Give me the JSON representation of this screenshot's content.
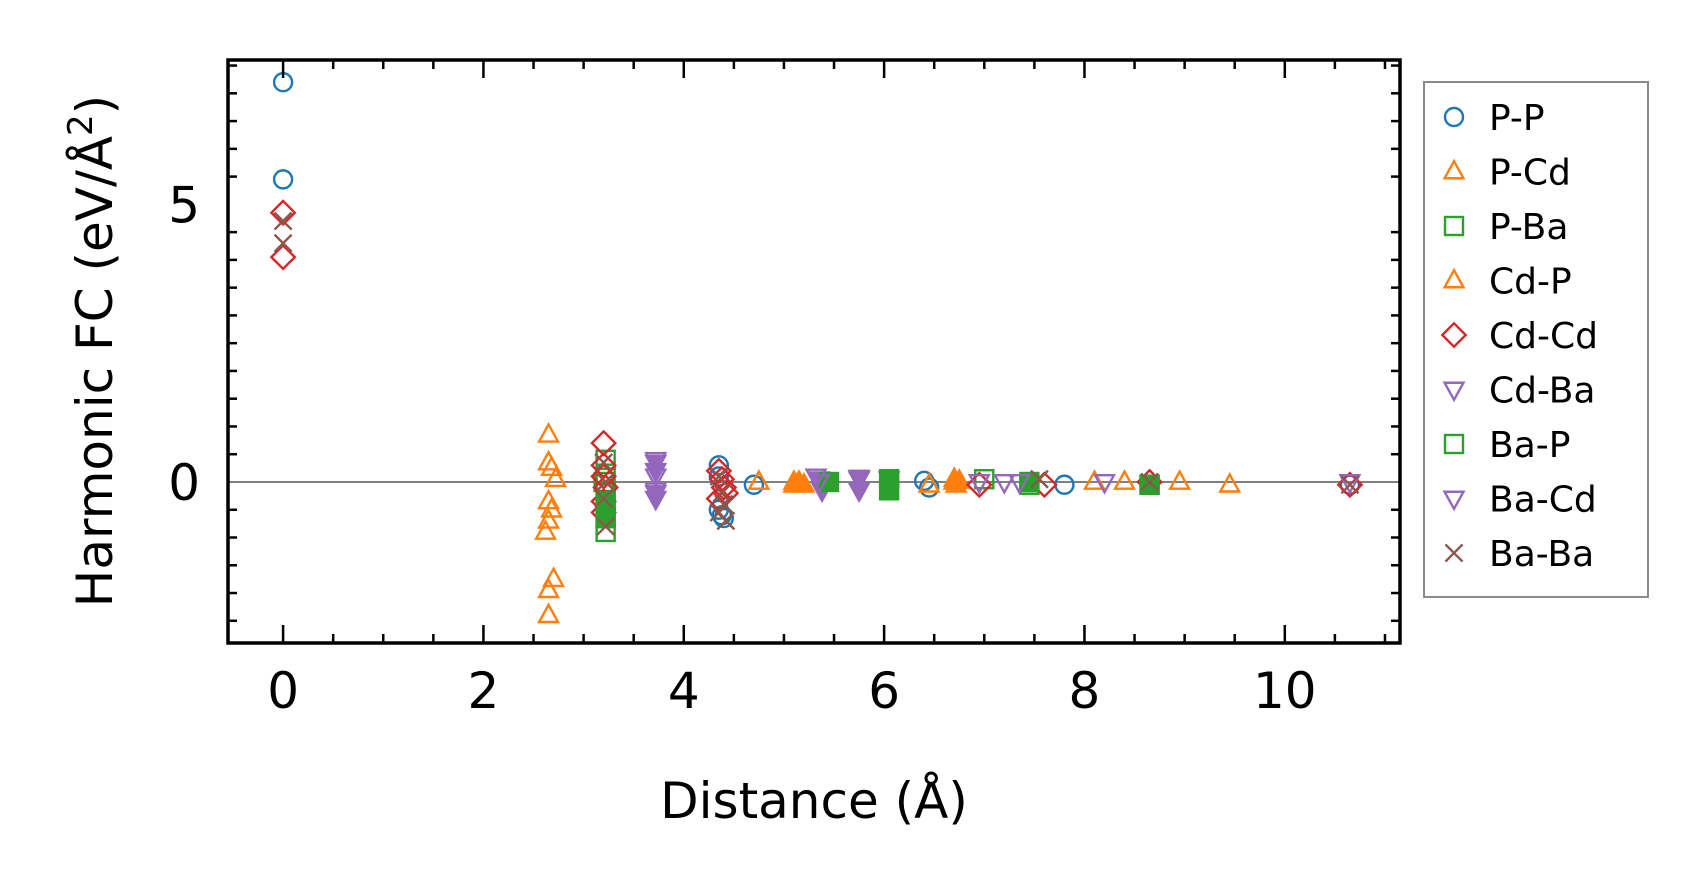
{
  "chart_data": {
    "type": "scatter",
    "title": "",
    "xlabel": "Distance (Å)",
    "ylabel_main": "Harmonic FC (eV/Å",
    "ylabel_sup": "2",
    "ylabel_close": ")",
    "xlim": [
      -0.55,
      11.15
    ],
    "ylim": [
      -2.9,
      7.6
    ],
    "xticks": [
      0,
      2,
      4,
      6,
      8,
      10
    ],
    "yticks": [
      0,
      5
    ],
    "xtick_labels": [
      "0",
      "2",
      "4",
      "6",
      "8",
      "10"
    ],
    "ytick_labels": [
      "0",
      "5"
    ],
    "legend_position": "outside-right",
    "reference_line_y": 0,
    "series": [
      {
        "name": "P-P",
        "marker": "circle",
        "filled": false,
        "color": "#1f77b4",
        "points": [
          [
            0,
            7.2
          ],
          [
            0,
            5.45
          ],
          [
            4.35,
            0.3
          ],
          [
            4.35,
            -0.5
          ],
          [
            4.38,
            -0.6
          ],
          [
            4.4,
            -0.65
          ],
          [
            4.35,
            0.1
          ],
          [
            4.7,
            -0.05
          ],
          [
            6.4,
            0.02
          ],
          [
            6.45,
            -0.1
          ],
          [
            7.8,
            -0.05
          ],
          [
            10.65,
            -0.05
          ]
        ]
      },
      {
        "name": "P-Cd",
        "marker": "triangle-up",
        "filled": false,
        "color": "#ff7f0e",
        "points": [
          [
            2.65,
            0.85
          ],
          [
            2.65,
            0.35
          ],
          [
            2.68,
            0.25
          ],
          [
            2.72,
            0.05
          ],
          [
            2.65,
            -0.35
          ],
          [
            2.68,
            -0.5
          ],
          [
            2.65,
            -0.7
          ],
          [
            2.62,
            -0.9
          ],
          [
            2.7,
            -1.75
          ],
          [
            2.65,
            -1.95
          ],
          [
            2.65,
            -2.4
          ],
          [
            4.75,
            0.0
          ],
          [
            5.1,
            0.0
          ],
          [
            6.45,
            -0.05
          ],
          [
            6.7,
            0.05
          ],
          [
            8.1,
            0.0
          ],
          [
            8.4,
            0.0
          ],
          [
            8.95,
            0.0
          ],
          [
            9.45,
            -0.05
          ]
        ]
      },
      {
        "name": "P-Ba",
        "marker": "square",
        "filled": false,
        "color": "#2ca02c",
        "points": [
          [
            3.22,
            0.4
          ],
          [
            3.22,
            0.15
          ],
          [
            3.22,
            -0.2
          ],
          [
            3.22,
            -0.5
          ],
          [
            3.22,
            -0.65
          ],
          [
            3.22,
            -0.9
          ],
          [
            3.2,
            0.0
          ],
          [
            7.0,
            0.05
          ],
          [
            7.45,
            -0.05
          ],
          [
            8.65,
            -0.05
          ]
        ]
      },
      {
        "name": "Cd-P",
        "marker": "triangle-up",
        "filled": true,
        "color": "#ff7f0e",
        "points": [
          [
            5.1,
            -0.05
          ],
          [
            5.15,
            0.0
          ],
          [
            5.2,
            -0.05
          ],
          [
            6.7,
            0.0
          ],
          [
            6.72,
            -0.05
          ],
          [
            6.75,
            0.02
          ]
        ]
      },
      {
        "name": "Cd-Cd",
        "marker": "diamond",
        "filled": false,
        "color": "#d62728",
        "points": [
          [
            0,
            4.85
          ],
          [
            0,
            4.05
          ],
          [
            3.2,
            0.7
          ],
          [
            3.2,
            0.3
          ],
          [
            3.2,
            0.1
          ],
          [
            3.22,
            -0.1
          ],
          [
            3.2,
            -0.35
          ],
          [
            3.2,
            -0.55
          ],
          [
            4.35,
            0.2
          ],
          [
            4.38,
            0.05
          ],
          [
            4.4,
            -0.1
          ],
          [
            4.42,
            -0.2
          ],
          [
            4.35,
            -0.3
          ],
          [
            6.95,
            -0.05
          ],
          [
            7.6,
            -0.05
          ],
          [
            8.65,
            0.0
          ],
          [
            10.65,
            -0.05
          ]
        ]
      },
      {
        "name": "Cd-Ba",
        "marker": "triangle-down",
        "filled": true,
        "color": "#9467bd",
        "points": [
          [
            3.72,
            0.35
          ],
          [
            3.72,
            0.2
          ],
          [
            3.72,
            -0.2
          ],
          [
            3.72,
            -0.3
          ],
          [
            5.35,
            0.05
          ],
          [
            5.38,
            -0.15
          ],
          [
            5.75,
            0.08
          ],
          [
            5.75,
            -0.15
          ],
          [
            6.05,
            0.05
          ]
        ]
      },
      {
        "name": "Ba-P",
        "marker": "square",
        "filled": true,
        "color": "#2ca02c",
        "points": [
          [
            3.22,
            -0.35
          ],
          [
            3.22,
            -0.65
          ],
          [
            5.45,
            0.0
          ],
          [
            6.05,
            0.05
          ],
          [
            6.05,
            -0.15
          ],
          [
            7.45,
            0.0
          ],
          [
            8.65,
            -0.05
          ]
        ]
      },
      {
        "name": "Ba-Cd",
        "marker": "triangle-down",
        "filled": false,
        "color": "#9467bd",
        "points": [
          [
            3.72,
            0.4
          ],
          [
            3.72,
            0.1
          ],
          [
            3.72,
            -0.15
          ],
          [
            5.32,
            0.1
          ],
          [
            5.35,
            0.0
          ],
          [
            5.75,
            0.05
          ],
          [
            6.95,
            0.0
          ],
          [
            7.2,
            0.0
          ],
          [
            7.35,
            0.0
          ],
          [
            8.2,
            0.0
          ],
          [
            10.65,
            0.0
          ]
        ]
      },
      {
        "name": "Ba-Ba",
        "marker": "cross",
        "filled": false,
        "color": "#8c564b",
        "points": [
          [
            0,
            4.7
          ],
          [
            0,
            4.3
          ],
          [
            3.2,
            0.35
          ],
          [
            3.22,
            0.0
          ],
          [
            3.2,
            -0.3
          ],
          [
            3.22,
            -0.8
          ],
          [
            4.35,
            0.1
          ],
          [
            4.38,
            -0.2
          ],
          [
            4.4,
            -0.4
          ],
          [
            4.42,
            -0.7
          ],
          [
            4.35,
            -0.55
          ],
          [
            7.55,
            0.05
          ],
          [
            8.65,
            0.0
          ],
          [
            10.65,
            -0.05
          ]
        ]
      }
    ]
  }
}
